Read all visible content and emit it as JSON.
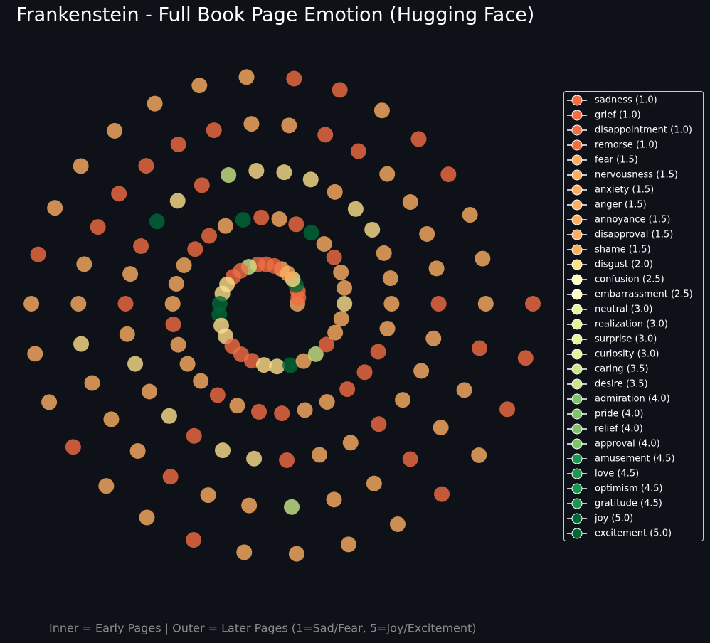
{
  "chart_data": {
    "type": "spiral",
    "title": "Frankenstein - Full Book Page Emotion (Hugging Face)",
    "caption": "Inner = Early Pages | Outer = Later Pages (1=Sad/Fear, 5=Joy/Excitement)",
    "alpha": 0.8,
    "values": [
      1.5,
      1,
      1,
      5,
      2,
      1.5,
      1.5,
      1,
      1,
      1,
      3.5,
      1,
      1,
      2,
      2,
      5,
      5,
      2,
      2,
      1,
      1,
      1,
      2,
      2,
      5,
      1.5,
      3.5,
      1,
      1.5,
      1.5,
      2,
      1.5,
      1.5,
      1,
      1.5,
      5,
      1,
      1.5,
      1,
      5,
      1.5,
      1,
      1,
      1.5,
      1.5,
      1.5,
      1,
      1.5,
      1.5,
      1.5,
      1,
      1.5,
      1,
      1,
      1.5,
      1.5,
      1,
      1,
      1,
      1.5,
      1.5,
      1.5,
      1.5,
      2,
      2,
      1.5,
      2,
      2,
      2,
      3.5,
      1,
      2,
      5,
      1,
      1.5,
      1,
      1.5,
      2,
      1.5,
      2,
      1,
      2,
      2,
      1,
      1.5,
      1.5,
      1,
      1.5,
      1.5,
      1.5,
      1,
      1.5,
      1.5,
      1.5,
      1.5,
      1,
      1,
      1.5,
      1.5,
      1,
      1,
      1,
      1,
      1,
      1.5,
      1.5,
      2,
      1.5,
      1.5,
      1.5,
      1,
      1.5,
      1.5,
      3.5,
      1.5,
      1.5,
      1,
      1.5,
      1.5,
      1,
      1.5,
      1.5,
      1.5,
      1,
      1,
      1.5,
      1,
      1,
      1.5,
      1.5,
      1.5,
      1.5,
      1.5,
      1.5,
      1,
      1.5,
      1.5,
      1.5,
      1,
      1.5,
      1.5,
      1,
      1.5,
      1.5,
      1.5,
      1.5,
      1,
      1.5,
      1,
      1,
      1
    ],
    "legend_position": "right",
    "legend": [
      {
        "label": "sadness (1.0)",
        "score": 1,
        "color": "#f46d43"
      },
      {
        "label": "grief (1.0)",
        "score": 1,
        "color": "#f46d43"
      },
      {
        "label": "disappointment (1.0)",
        "score": 1,
        "color": "#f46d43"
      },
      {
        "label": "remorse (1.0)",
        "score": 1,
        "color": "#f46d43"
      },
      {
        "label": "fear (1.5)",
        "score": 1.5,
        "color": "#fdae61"
      },
      {
        "label": "nervousness (1.5)",
        "score": 1.5,
        "color": "#fdae61"
      },
      {
        "label": "anxiety (1.5)",
        "score": 1.5,
        "color": "#fdae61"
      },
      {
        "label": "anger (1.5)",
        "score": 1.5,
        "color": "#fdae61"
      },
      {
        "label": "annoyance (1.5)",
        "score": 1.5,
        "color": "#fdae61"
      },
      {
        "label": "disapproval (1.5)",
        "score": 1.5,
        "color": "#fdae61"
      },
      {
        "label": "shame (1.5)",
        "score": 1.5,
        "color": "#fdae61"
      },
      {
        "label": "disgust (2.0)",
        "score": 2,
        "color": "#fee08b"
      },
      {
        "label": "confusion (2.5)",
        "score": 2.5,
        "color": "#ffffbf"
      },
      {
        "label": "embarrassment (2.5)",
        "score": 2.5,
        "color": "#ffffbf"
      },
      {
        "label": "neutral (3.0)",
        "score": 3,
        "color": "#e6f598"
      },
      {
        "label": "realization (3.0)",
        "score": 3,
        "color": "#e6f598"
      },
      {
        "label": "surprise (3.0)",
        "score": 3,
        "color": "#e6f598"
      },
      {
        "label": "curiosity (3.0)",
        "score": 3,
        "color": "#e6f598"
      },
      {
        "label": "caring (3.5)",
        "score": 3.5,
        "color": "#cbe68a"
      },
      {
        "label": "desire (3.5)",
        "score": 3.5,
        "color": "#cbe68a"
      },
      {
        "label": "admiration (4.0)",
        "score": 4,
        "color": "#7fc46c"
      },
      {
        "label": "pride (4.0)",
        "score": 4,
        "color": "#7fc46c"
      },
      {
        "label": "relief (4.0)",
        "score": 4,
        "color": "#7fc46c"
      },
      {
        "label": "approval (4.0)",
        "score": 4,
        "color": "#7fc46c"
      },
      {
        "label": "amusement (4.5)",
        "score": 4.5,
        "color": "#1a9850"
      },
      {
        "label": "love (4.5)",
        "score": 4.5,
        "color": "#1a9850"
      },
      {
        "label": "optimism (4.5)",
        "score": 4.5,
        "color": "#1a9850"
      },
      {
        "label": "gratitude (4.5)",
        "score": 4.5,
        "color": "#1a9850"
      },
      {
        "label": "joy (5.0)",
        "score": 5,
        "color": "#006837"
      },
      {
        "label": "excitement (5.0)",
        "score": 5,
        "color": "#006837"
      }
    ]
  }
}
